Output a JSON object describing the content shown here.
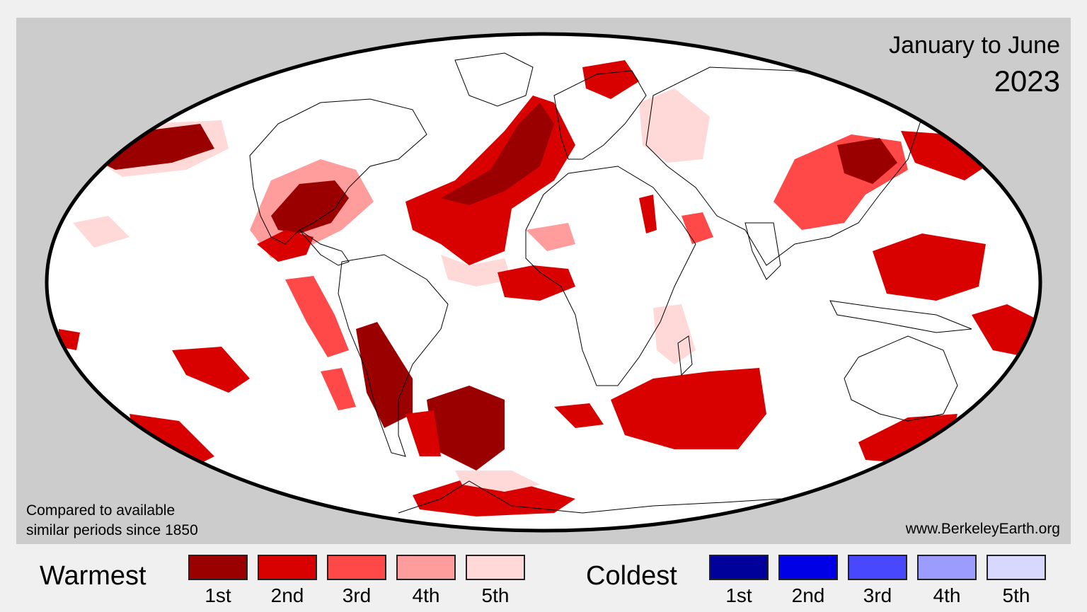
{
  "title": {
    "period": "January to June",
    "year": "2023"
  },
  "note": {
    "line1": "Compared to available",
    "line2": "similar periods since 1850"
  },
  "source": "www.BerkeleyEarth.org",
  "projection": "Mollweide",
  "background_color": "#cccccc",
  "ocean_land_color": "#ffffff",
  "legend": {
    "warm": {
      "title": "Warmest",
      "items": [
        {
          "rank": "1st",
          "color": "#9b0000"
        },
        {
          "rank": "2nd",
          "color": "#d90000"
        },
        {
          "rank": "3rd",
          "color": "#ff4848"
        },
        {
          "rank": "4th",
          "color": "#ff9c9c"
        },
        {
          "rank": "5th",
          "color": "#ffd8d8"
        }
      ]
    },
    "cold": {
      "title": "Coldest",
      "items": [
        {
          "rank": "1st",
          "color": "#00009b"
        },
        {
          "rank": "2nd",
          "color": "#0000e6"
        },
        {
          "rank": "3rd",
          "color": "#4848ff"
        },
        {
          "rank": "4th",
          "color": "#9c9cff"
        },
        {
          "rank": "5th",
          "color": "#d8d8ff"
        }
      ]
    }
  }
}
